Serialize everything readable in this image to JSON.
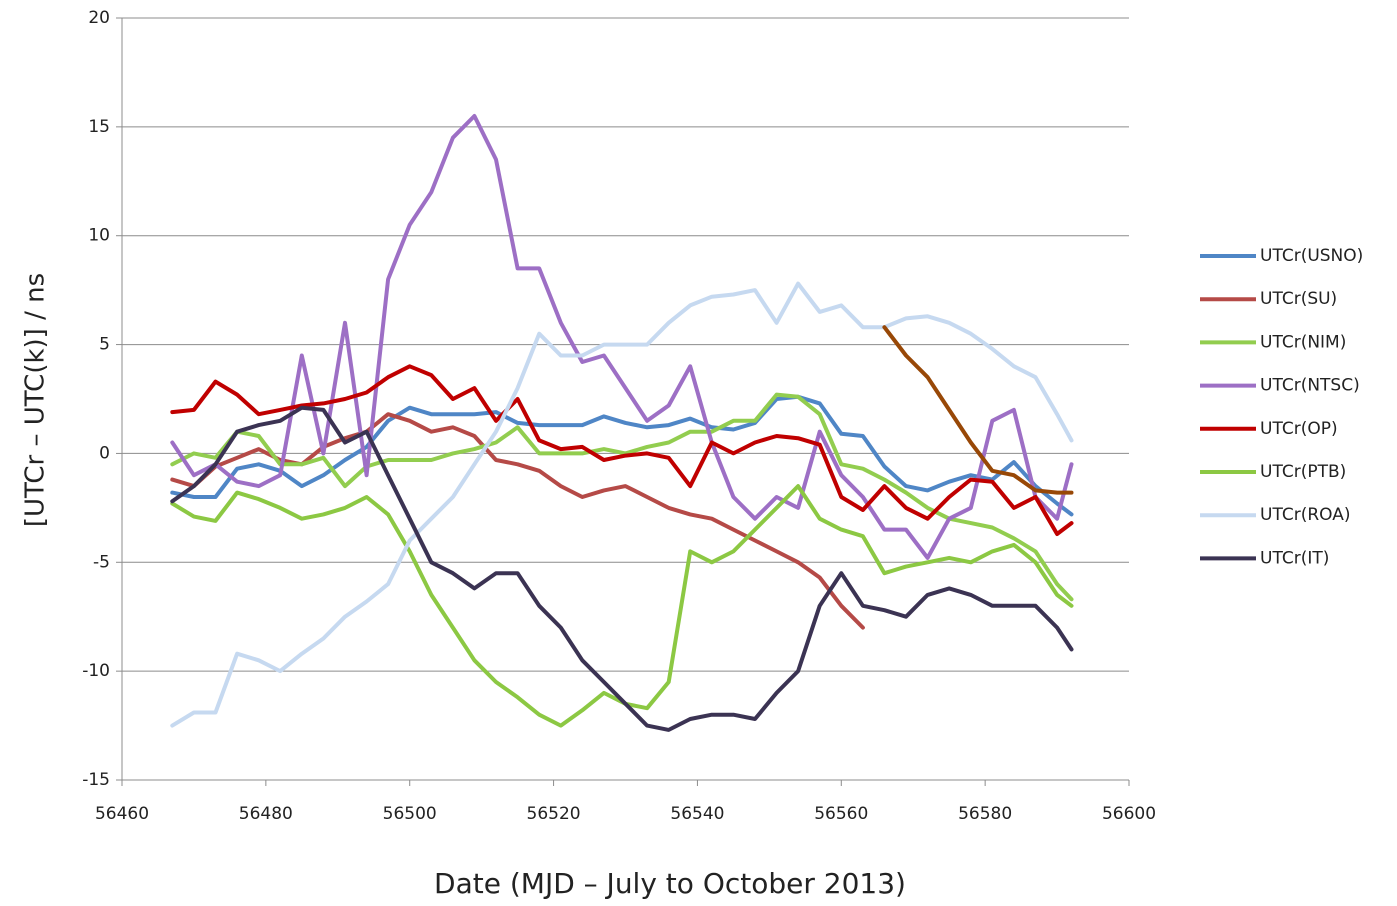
{
  "chart_data": {
    "type": "line",
    "xlabel": "Date (MJD – July to October 2013)",
    "ylabel": "[UTCr – UTC(k)] / ns",
    "x": [
      56467,
      56470,
      56473,
      56476,
      56479,
      56482,
      56485,
      56488,
      56491,
      56494,
      56497,
      56500,
      56503,
      56506,
      56509,
      56512,
      56515,
      56518,
      56521,
      56524,
      56527,
      56530,
      56533,
      56536,
      56539,
      56542,
      56545,
      56548,
      56551,
      56554,
      56557,
      56560,
      56563,
      56566,
      56569,
      56572,
      56575,
      56578,
      56581,
      56584,
      56587,
      56590,
      56592
    ],
    "xlim": [
      56460,
      56600
    ],
    "xticks": [
      56460,
      56480,
      56500,
      56520,
      56540,
      56560,
      56580,
      56600
    ],
    "ylim": [
      -15,
      20
    ],
    "yticks": [
      -15,
      -10,
      -5,
      0,
      5,
      10,
      15,
      20
    ],
    "grid": true,
    "legend": "right",
    "series": [
      {
        "name": "UTCr(USNO)",
        "color": "#4f86c6",
        "values": [
          -1.8,
          -2,
          -2,
          -0.7,
          -0.5,
          -0.8,
          -1.5,
          -1,
          -0.3,
          0.3,
          1.5,
          2.1,
          1.8,
          1.8,
          1.8,
          1.9,
          1.4,
          1.3,
          1.3,
          1.3,
          1.7,
          1.4,
          1.2,
          1.3,
          1.6,
          1.2,
          1.1,
          1.4,
          2.5,
          2.6,
          2.3,
          0.9,
          0.8,
          -0.6,
          -1.5,
          -1.7,
          -1.3,
          -1,
          -1.2,
          -0.4,
          -1.5,
          -2.3,
          -2.8
        ]
      },
      {
        "name": "UTCr(SU)",
        "color": "#b54a47",
        "values": [
          -1.2,
          -1.5,
          -0.6,
          -0.2,
          0.2,
          -0.3,
          -0.5,
          0.3,
          0.7,
          1.0,
          1.8,
          1.5,
          1,
          1.2,
          0.8,
          -0.3,
          -0.5,
          -0.8,
          -1.5,
          -2,
          -1.7,
          -1.5,
          -2,
          -2.5,
          -2.8,
          -3,
          -3.5,
          -4,
          -4.5,
          -5,
          -5.7,
          -7,
          -8,
          null,
          null,
          null,
          null,
          null,
          null,
          null,
          null,
          null,
          null
        ]
      },
      {
        "name": "UTCr(NIM)",
        "color": "#92cd4f",
        "values": [
          -0.5,
          0,
          -0.2,
          1.0,
          0.8,
          -0.5,
          -0.5,
          -0.2,
          -1.5,
          -0.6,
          -0.3,
          -0.3,
          -0.3,
          0,
          0.2,
          0.5,
          1.2,
          0,
          0,
          0,
          0.2,
          0,
          0.3,
          0.5,
          1,
          1,
          1.5,
          1.5,
          2.7,
          2.6,
          1.8,
          -0.5,
          -0.7,
          -1.2,
          -1.8,
          -2.5,
          -3,
          -3.2,
          -3.4,
          -3.9,
          -4.5,
          -6,
          -6.7
        ]
      },
      {
        "name": "UTCr(NTSC)",
        "color": "#9d6fc5",
        "values": [
          0.5,
          -1,
          -0.5,
          -1.3,
          -1.5,
          -1,
          4.5,
          0,
          6,
          -1,
          8,
          10.5,
          12,
          14.5,
          15.5,
          13.5,
          8.5,
          8.5,
          6,
          4.2,
          4.5,
          3,
          1.5,
          2.2,
          4,
          0.5,
          -2,
          -3,
          -2,
          -2.5,
          1,
          -1,
          -2,
          -3.5,
          -3.5,
          -4.8,
          -3,
          -2.5,
          1.5,
          2,
          -2,
          -3,
          -0.5
        ]
      },
      {
        "name": "UTCr(OP)",
        "color": "#c00000",
        "values": [
          1.9,
          2.0,
          3.3,
          2.7,
          1.8,
          2.0,
          2.2,
          2.3,
          2.5,
          2.8,
          3.5,
          4.0,
          3.6,
          2.5,
          3,
          1.5,
          2.5,
          0.6,
          0.2,
          0.3,
          -0.3,
          -0.1,
          0,
          -0.2,
          -1.5,
          0.5,
          0,
          0.5,
          0.8,
          0.7,
          0.4,
          -2,
          -2.6,
          -1.5,
          -2.5,
          -3,
          -2,
          -1.2,
          -1.3,
          -2.5,
          -2,
          -3.7,
          -3.2
        ]
      },
      {
        "name": "UTCr(PTB)",
        "color": "#8cc843",
        "values": [
          -2.3,
          -2.9,
          -3.1,
          -1.8,
          -2.1,
          -2.5,
          -3,
          -2.8,
          -2.5,
          -2,
          -2.8,
          -4.5,
          -6.5,
          -8,
          -9.5,
          -10.5,
          -11.2,
          -12,
          -12.5,
          -11.8,
          -11,
          -11.5,
          -11.7,
          -10.5,
          -4.5,
          -5,
          -4.5,
          -3.5,
          -2.5,
          -1.5,
          -3,
          -3.5,
          -3.8,
          -5.5,
          -5.2,
          -5,
          -4.8,
          -5,
          -4.5,
          -4.2,
          -5,
          -6.5,
          -7
        ]
      },
      {
        "name": "UTCr(ROA)",
        "color": "#c6d9f0",
        "values": [
          -12.5,
          -11.9,
          -11.9,
          -9.2,
          -9.5,
          -10,
          -9.2,
          -8.5,
          -7.5,
          -6.8,
          -6,
          -4,
          -3,
          -2,
          -0.5,
          1,
          3,
          5.5,
          4.5,
          4.5,
          5,
          5,
          5,
          6,
          6.8,
          7.2,
          7.3,
          7.5,
          6,
          7.8,
          6.5,
          6.8,
          5.8,
          5.8,
          6.2,
          6.3,
          6,
          5.5,
          4.8,
          4,
          3.5,
          1.8,
          0.6
        ]
      },
      {
        "name": "UTCr(IT)",
        "color": "#3b3353",
        "values": [
          -2.2,
          -1.5,
          -0.5,
          1,
          1.3,
          1.5,
          2.1,
          2,
          0.5,
          1.0,
          -1,
          -3,
          -5,
          -5.5,
          -6.2,
          -5.5,
          -5.5,
          -7,
          -8,
          -9.5,
          -10.5,
          -11.5,
          -12.5,
          -12.7,
          -12.2,
          -12,
          -12,
          -12.2,
          -11,
          -10,
          -7,
          -5.5,
          -7,
          -7.2,
          -7.5,
          -6.5,
          -6.2,
          -6.5,
          -7,
          -7,
          -7,
          -8,
          -9
        ]
      },
      {
        "color": "#984807",
        "values": [
          null,
          null,
          null,
          null,
          null,
          null,
          null,
          null,
          null,
          null,
          null,
          null,
          null,
          null,
          null,
          null,
          null,
          null,
          null,
          null,
          null,
          null,
          null,
          null,
          null,
          null,
          null,
          null,
          null,
          null,
          null,
          null,
          null,
          5.8,
          4.5,
          3.5,
          2,
          0.5,
          -0.8,
          -1,
          -1.7,
          -1.8,
          -1.8
        ]
      }
    ]
  }
}
